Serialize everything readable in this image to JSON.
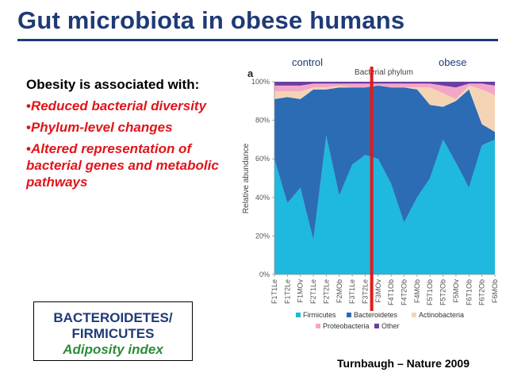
{
  "slide": {
    "title": "Gut microbiota in obese humans",
    "intro": "Obesity is associated with:",
    "bullets": [
      "Reduced bacterial diversity",
      "Phylum-level changes",
      "Altered representation of bacterial genes and metabolic pathways"
    ],
    "bullet_symbol": "•",
    "box": {
      "line1": "BACTEROIDETES/",
      "line2": "FIRMICUTES",
      "line3": "Adiposity index"
    },
    "citation": "Turnbaugh – Nature 2009",
    "label_control": "control",
    "label_obese": "obese"
  },
  "colors": {
    "title": "#1f3a76",
    "bullet": "#e0151b",
    "box_accent": "#2e8b3a",
    "firmicutes": "#1fb8de",
    "bacteroidetes": "#2b6cb5",
    "actinobacteria": "#f5d4b6",
    "proteobacteria": "#f4a6c8",
    "other": "#6b3fa0",
    "divider": "#e01b1b"
  },
  "chart_data": {
    "type": "area",
    "stacked": true,
    "panel_label": "a",
    "title": "Bacterial phylum",
    "ylabel": "Relative abundance",
    "ylim": [
      0,
      100
    ],
    "yticks": [
      "0%",
      "20%",
      "40%",
      "60%",
      "80%",
      "100%"
    ],
    "categories": [
      "F1T1Le",
      "F1T2Le",
      "F1MOv",
      "F2T1Le",
      "F2T2Le",
      "F2MOb",
      "F3T1Le",
      "F3T2Le",
      "F3MOv",
      "F4T1Ob",
      "F4T2Ob",
      "F4MOb",
      "F5T1Ob",
      "F5T2Ob",
      "F5MOv",
      "F6T1Ob",
      "F6T2Ob",
      "F6MOb"
    ],
    "divider_after_index": 7,
    "series": [
      {
        "name": "Firmicutes",
        "values": [
          60,
          37,
          45,
          18,
          72,
          41,
          57,
          62,
          60,
          47,
          27,
          40,
          50,
          70,
          58,
          45,
          67,
          70
        ]
      },
      {
        "name": "Bacteroidetes",
        "values": [
          31,
          55,
          46,
          78,
          24,
          56,
          40,
          35,
          38,
          50,
          70,
          56,
          38,
          17,
          32,
          51,
          11,
          4
        ]
      },
      {
        "name": "Actinobacteria",
        "values": [
          4,
          3,
          4,
          1,
          1,
          1,
          0,
          0,
          0,
          0,
          0,
          1,
          9,
          7,
          1,
          2,
          18,
          19
        ]
      },
      {
        "name": "Proteobacteria",
        "values": [
          3,
          3,
          3,
          2,
          2,
          1,
          2,
          2,
          1,
          2,
          2,
          2,
          2,
          4,
          6,
          1,
          3,
          5
        ]
      },
      {
        "name": "Other",
        "values": [
          2,
          2,
          2,
          1,
          1,
          1,
          1,
          1,
          1,
          1,
          1,
          1,
          1,
          2,
          3,
          1,
          1,
          2
        ]
      }
    ],
    "legend": [
      "Firmicutes",
      "Bacteroidetes",
      "Actinobacteria",
      "Proteobacteria",
      "Other"
    ]
  }
}
